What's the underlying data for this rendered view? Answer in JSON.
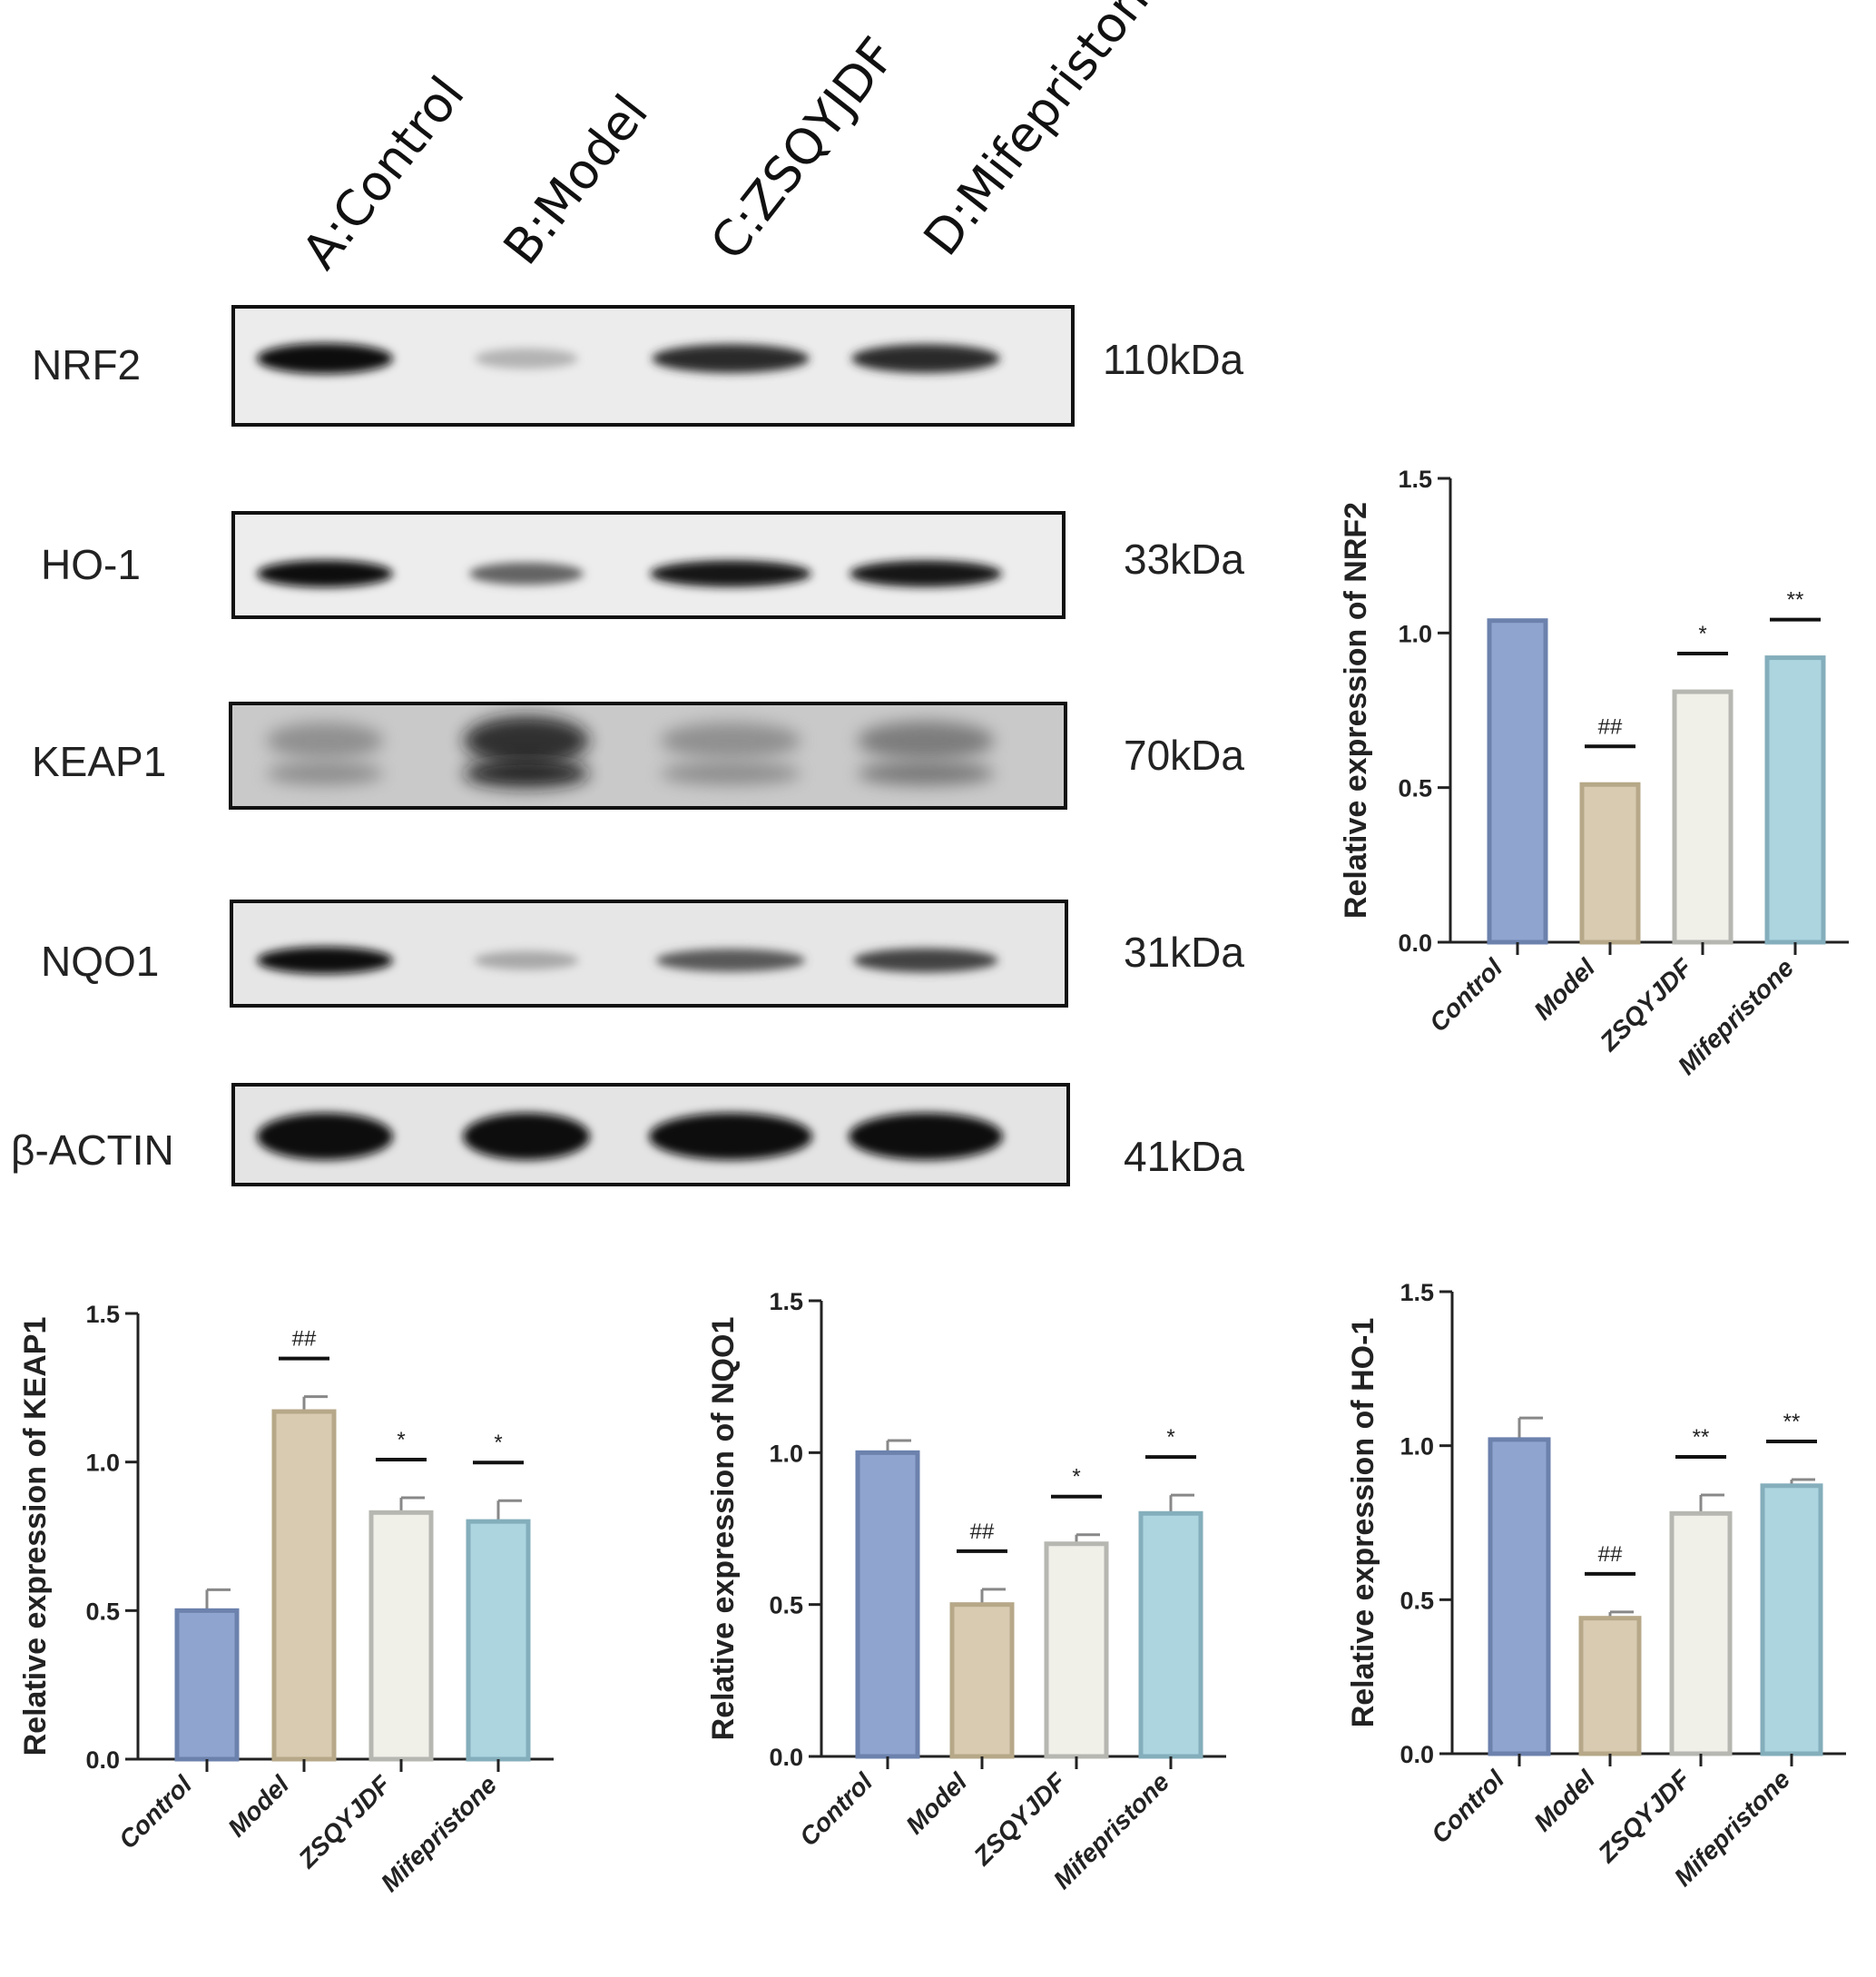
{
  "western_blot": {
    "lanes": [
      "A:Control",
      "B:Model",
      "C:ZSQYJDF",
      "D:Mifepristone"
    ],
    "rows": [
      {
        "protein": "NRF2",
        "size": "110kDa",
        "intensity": [
          1.0,
          0.25,
          0.85,
          0.85
        ]
      },
      {
        "protein": "HO-1",
        "size": "33kDa",
        "intensity": [
          1.0,
          0.6,
          0.95,
          0.95
        ]
      },
      {
        "protein": "KEAP1",
        "size": "70kDa",
        "intensity": [
          0.45,
          0.95,
          0.45,
          0.55
        ]
      },
      {
        "protein": "NQO1",
        "size": "31kDa",
        "intensity": [
          1.0,
          0.3,
          0.65,
          0.75
        ]
      },
      {
        "protein": "β-ACTIN",
        "size": "41kDa",
        "intensity": [
          1.0,
          1.0,
          1.0,
          1.0
        ]
      }
    ]
  },
  "colors": {
    "Control": "#8fa5cf",
    "Model": "#d8cbb2",
    "ZSQYJDF": "#f0efe8",
    "Mifepristone": "#acd5e0"
  },
  "chart_data": [
    {
      "id": "nrf2",
      "type": "bar",
      "categories": [
        "Control",
        "Model",
        "ZSQYJDF",
        "Mifepristone"
      ],
      "values": [
        1.04,
        0.51,
        0.81,
        0.92
      ],
      "errors": [
        0,
        0,
        0,
        0
      ],
      "significance": [
        "",
        "##",
        "*",
        "**"
      ],
      "ylabel": "Relative expression of NRF2",
      "ylim": [
        0,
        1.5
      ],
      "yticks": [
        "0.0",
        "0.5",
        "1.0",
        "1.5"
      ]
    },
    {
      "id": "keap1",
      "type": "bar",
      "categories": [
        "Control",
        "Model",
        "ZSQYJDF",
        "Mifepristone"
      ],
      "values": [
        0.5,
        1.17,
        0.83,
        0.8
      ],
      "errors": [
        0.07,
        0.05,
        0.05,
        0.07
      ],
      "significance": [
        "",
        "##",
        "*",
        "*"
      ],
      "ylabel": "Relative expression of KEAP1",
      "ylim": [
        0,
        1.5
      ],
      "yticks": [
        "0.0",
        "0.5",
        "1.0",
        "1.5"
      ]
    },
    {
      "id": "nqo1",
      "type": "bar",
      "categories": [
        "Control",
        "Model",
        "ZSQYJDF",
        "Mifepristone"
      ],
      "values": [
        1.0,
        0.5,
        0.7,
        0.8
      ],
      "errors": [
        0.04,
        0.05,
        0.03,
        0.06
      ],
      "significance": [
        "",
        "##",
        "*",
        "*"
      ],
      "ylabel": "Relative expression of NQO1",
      "ylim": [
        0,
        1.5
      ],
      "yticks": [
        "0.0",
        "0.5",
        "1.0",
        "1.5"
      ]
    },
    {
      "id": "ho1",
      "type": "bar",
      "categories": [
        "Control",
        "Model",
        "ZSQYJDF",
        "Mifepristone"
      ],
      "values": [
        1.02,
        0.44,
        0.78,
        0.87
      ],
      "errors": [
        0.07,
        0.02,
        0.06,
        0.02
      ],
      "significance": [
        "",
        "##",
        "**",
        "**"
      ],
      "ylabel": "Relative expression of HO-1",
      "ylim": [
        0,
        1.5
      ],
      "yticks": [
        "0.0",
        "0.5",
        "1.0",
        "1.5"
      ]
    }
  ]
}
